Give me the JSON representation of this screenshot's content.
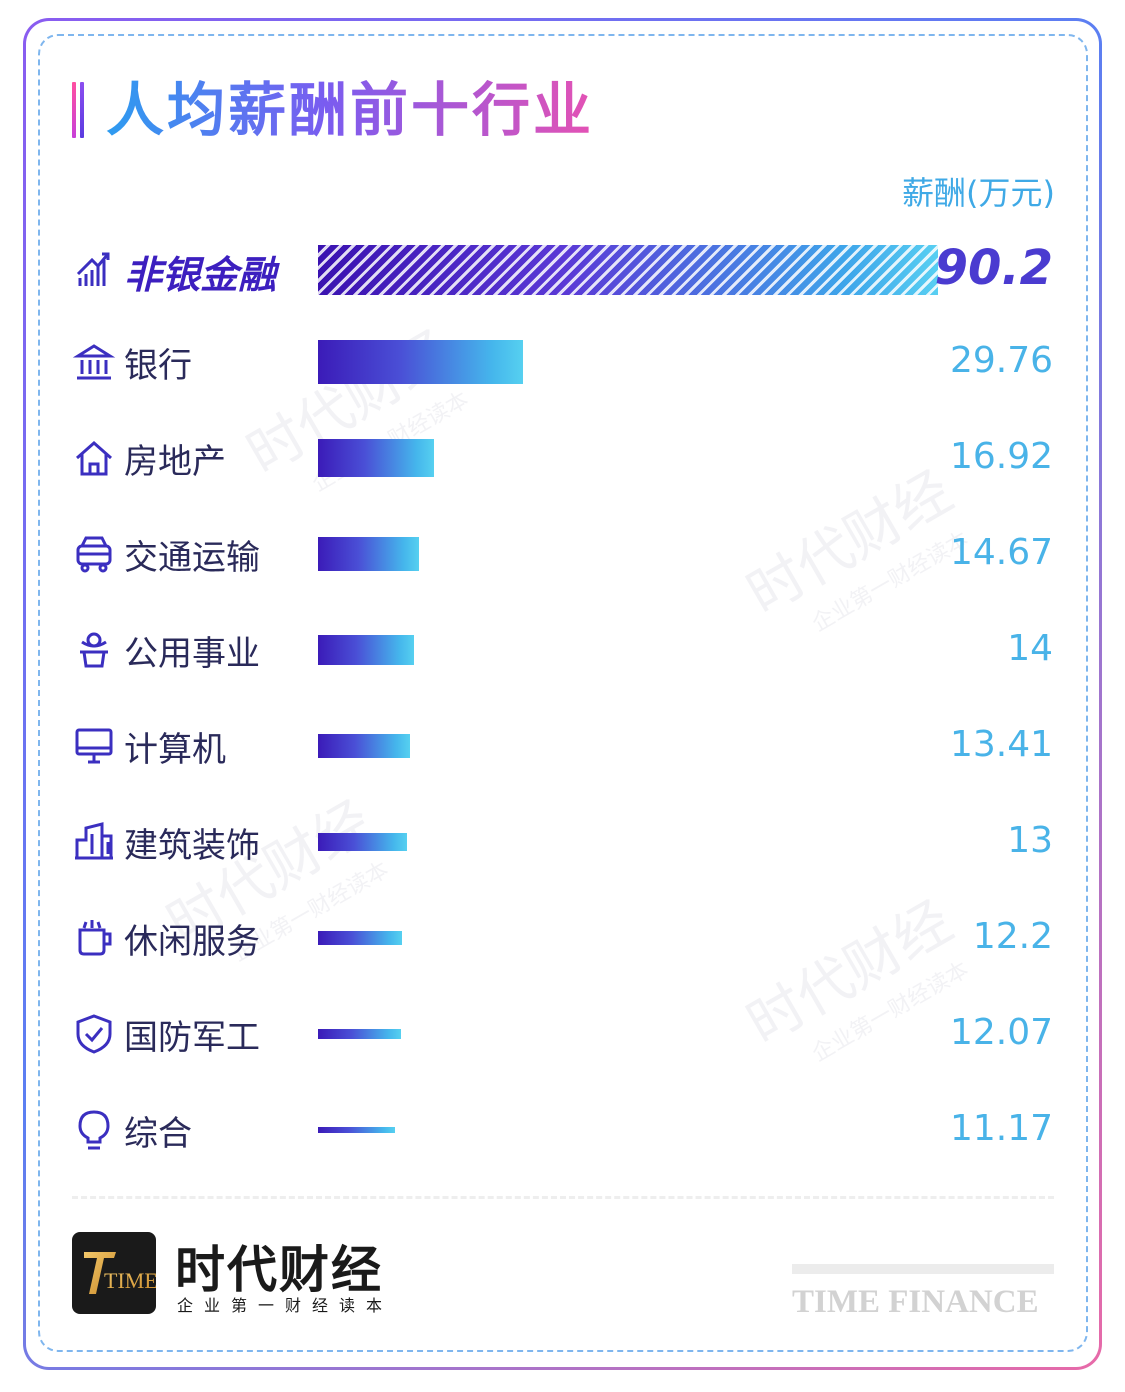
{
  "title": "人均薪酬前十行业",
  "unit_label": "薪酬(万元)",
  "watermark": {
    "main": "时代财经",
    "sub": "企业第一财经读本"
  },
  "brand": {
    "logo_mark": "TIME",
    "name_cn": "时代财经",
    "slogan": "企业第一财经读本",
    "name_en": "TIME FINANCE"
  },
  "colors": {
    "bar_start": "#3b1bb8",
    "bar_end": "#56d0f0",
    "value_text": "#49b3e8",
    "highlight_text": "#3c1fbf"
  },
  "chart_data": {
    "type": "bar",
    "orientation": "horizontal",
    "title": "人均薪酬前十行业",
    "xlabel": "薪酬(万元)",
    "ylabel": "",
    "xlim": [
      0,
      90.2
    ],
    "grid": false,
    "categories": [
      "非银金融",
      "银行",
      "房地产",
      "交通运输",
      "公用事业",
      "计算机",
      "建筑装饰",
      "休闲服务",
      "国防军工",
      "综合"
    ],
    "values": [
      90.2,
      29.76,
      16.92,
      14.67,
      14,
      13.41,
      13,
      12.2,
      12.07,
      11.17
    ],
    "value_labels": [
      "90.2",
      "29.76",
      "16.92",
      "14.67",
      "14",
      "13.41",
      "13",
      "12.2",
      "12.07",
      "11.17"
    ],
    "icons": [
      "chart-up-icon",
      "bank-icon",
      "house-icon",
      "car-icon",
      "plant-icon",
      "monitor-icon",
      "building-icon",
      "cup-icon",
      "shield-icon",
      "bulb-icon"
    ]
  }
}
